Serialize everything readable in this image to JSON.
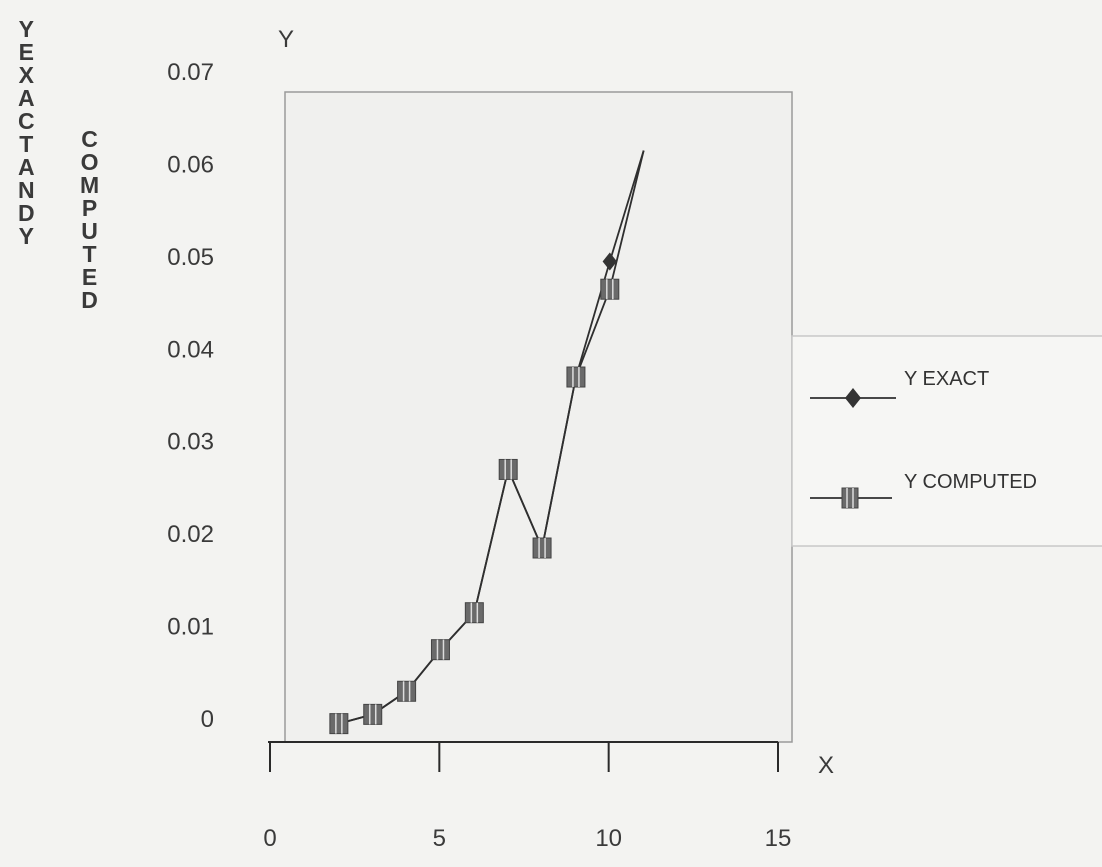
{
  "chart_data": {
    "type": "line",
    "title": "",
    "ylabel_left": "YEXACTANDY",
    "ylabel_right": "COMPUTED",
    "y_axis_title": "Y",
    "x_axis_title": "X",
    "x": [
      1,
      2,
      3,
      4,
      5,
      6,
      7,
      8,
      9,
      10
    ],
    "series": [
      {
        "name": "Y EXACT",
        "marker": "diamond",
        "values": [
          -0.0005,
          0.0005,
          0.003,
          0.0075,
          0.0115,
          0.027,
          0.0185,
          0.037,
          0.0495,
          0.0615
        ]
      },
      {
        "name": "Y COMPUTED",
        "marker": "square",
        "values": [
          -0.0005,
          0.0005,
          0.003,
          0.0075,
          0.0115,
          0.027,
          0.0185,
          0.037,
          0.0465,
          0.0615
        ]
      }
    ],
    "xlim": [
      0,
      15
    ],
    "ylim": [
      -0.002,
      0.07
    ],
    "x_ticks": [
      "0",
      "5",
      "10",
      "15"
    ],
    "y_ticks": [
      "0",
      "0.01",
      "0.02",
      "0.03",
      "0.04",
      "0.05",
      "0.06",
      "0.07"
    ],
    "legend_position": "right",
    "grid": false,
    "colors": {
      "line": "#2f2f2f",
      "marker": "#333333",
      "marker_square": "#6a6a6a",
      "plot_bg": "#f0f0ee",
      "frame": "#9a9a9a"
    }
  }
}
